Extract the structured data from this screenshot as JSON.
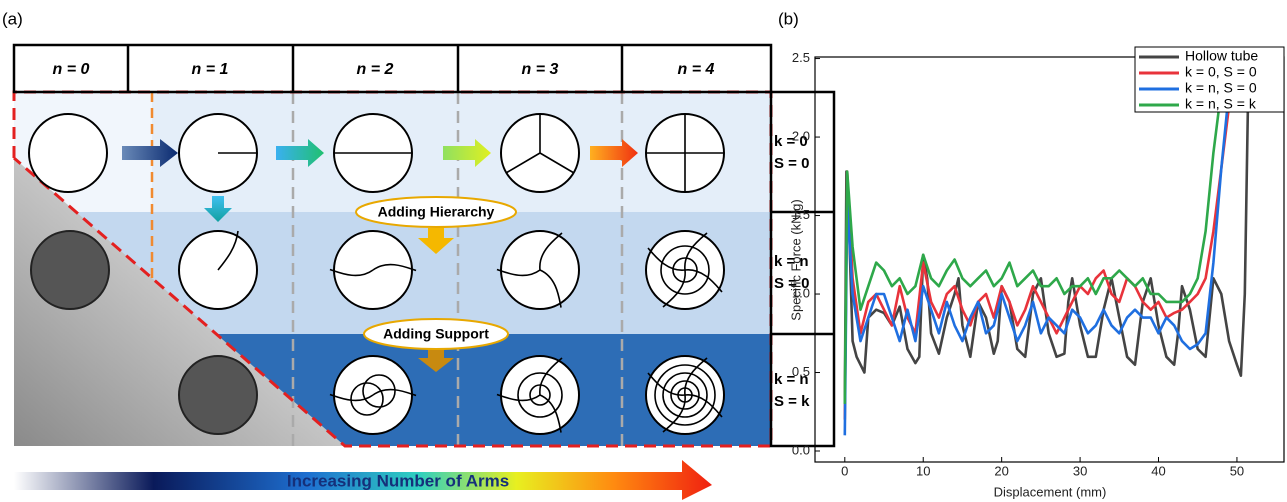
{
  "panel_labels": [
    "(a)",
    "(b)"
  ],
  "diagram": {
    "columns": [
      "n = 0",
      "n = 1",
      "n = 2",
      "n = 3",
      "n = 4"
    ],
    "rows": [
      {
        "k": "k = 0",
        "s": "S = 0"
      },
      {
        "k": "k = n",
        "s": "S = 0"
      },
      {
        "k": "k = n",
        "s": "S = k"
      }
    ],
    "steps": [
      "Adding Hierarchy",
      "Adding Support"
    ],
    "arrow_label": "Increasing Number of Arms"
  },
  "chart_data": {
    "type": "line",
    "xlabel": "Displacement (mm)",
    "ylabel": "Specific Force (kN/g)",
    "xlim": [
      -3.8,
      56
    ],
    "xticks": [
      0,
      10,
      20,
      30,
      40,
      50
    ],
    "ylim": [
      -0.07,
      2.51
    ],
    "yticks": [
      {
        "value": 0,
        "label": "0.0"
      },
      0.5,
      {
        "value": 1,
        "label": "1.0"
      },
      1.5,
      {
        "value": 2,
        "label": "2.0"
      },
      2.5
    ],
    "legend": "upper right",
    "series": [
      {
        "name": "Hollow tube",
        "color": "#444444",
        "x": [
          0,
          0.2,
          0.5,
          1,
          1.5,
          2,
          2.5,
          3,
          4,
          5,
          6,
          7,
          8,
          9,
          9.5,
          10,
          10.5,
          11,
          12,
          13,
          14,
          14.5,
          15,
          16,
          17,
          18,
          19,
          19.5,
          20,
          21,
          22,
          23,
          24,
          25,
          26,
          27,
          28,
          28.5,
          29,
          30,
          31,
          32,
          33,
          34,
          35,
          36,
          37,
          38,
          39,
          40,
          41,
          42,
          42.5,
          43,
          44,
          45,
          46,
          47,
          48,
          49,
          50,
          50.5,
          51,
          51.5
        ],
        "values": [
          0.3,
          1.78,
          1.5,
          0.7,
          0.6,
          0.55,
          0.5,
          0.85,
          0.9,
          0.88,
          0.8,
          0.92,
          0.65,
          0.56,
          0.6,
          1.25,
          1.1,
          0.75,
          0.62,
          0.85,
          1.0,
          1.1,
          0.8,
          0.6,
          0.95,
          0.85,
          0.62,
          0.7,
          1.05,
          0.95,
          0.65,
          0.6,
          1.0,
          1.1,
          0.75,
          0.6,
          0.62,
          0.95,
          1.1,
          0.8,
          0.6,
          0.6,
          0.9,
          1.1,
          0.85,
          0.6,
          0.55,
          0.95,
          1.1,
          0.8,
          0.6,
          0.55,
          0.75,
          1.05,
          0.9,
          0.65,
          0.6,
          1.1,
          1.0,
          0.7,
          0.55,
          0.48,
          1.0,
          2.5
        ]
      },
      {
        "name": "k = 0, S = 0",
        "color": "#e8333b",
        "x": [
          0,
          0.3,
          1,
          2,
          3,
          4,
          5,
          6,
          7,
          8,
          9,
          10,
          11,
          12,
          13,
          14,
          15,
          16,
          17,
          18,
          19,
          20,
          21,
          22,
          23,
          24,
          25,
          26,
          27,
          28,
          29,
          30,
          31,
          32,
          33,
          34,
          35,
          36,
          37,
          38,
          39,
          40,
          41,
          42,
          43,
          44,
          45,
          46,
          47,
          48,
          49,
          50
        ],
        "values": [
          0.2,
          1.78,
          1.1,
          0.75,
          0.95,
          1.0,
          0.9,
          0.8,
          1.05,
          0.85,
          0.75,
          1.2,
          0.95,
          0.85,
          1.0,
          1.05,
          0.9,
          0.8,
          0.95,
          1.0,
          0.85,
          1.05,
          0.95,
          0.8,
          0.9,
          1.05,
          0.95,
          0.85,
          0.75,
          0.85,
          0.95,
          1.05,
          1.0,
          1.1,
          1.15,
          1.0,
          0.95,
          1.1,
          1.05,
          0.95,
          0.9,
          0.95,
          0.85,
          0.88,
          0.9,
          0.95,
          1.0,
          1.1,
          1.4,
          1.8,
          2.2,
          2.5
        ]
      },
      {
        "name": "k = n, S = 0",
        "color": "#1f6fe0",
        "x": [
          0,
          0.3,
          1,
          2,
          3,
          4,
          5,
          6,
          7,
          8,
          9,
          10,
          11,
          12,
          13,
          14,
          15,
          16,
          17,
          18,
          19,
          20,
          21,
          22,
          23,
          24,
          25,
          26,
          27,
          28,
          29,
          30,
          31,
          32,
          33,
          34,
          35,
          36,
          37,
          38,
          39,
          40,
          41,
          42,
          43,
          44,
          45,
          46,
          47,
          48,
          49,
          50
        ],
        "values": [
          0.1,
          1.6,
          1.0,
          0.7,
          0.85,
          1.0,
          1.0,
          0.85,
          0.7,
          0.9,
          0.7,
          1.05,
          0.9,
          0.75,
          0.95,
          0.8,
          0.7,
          0.85,
          0.95,
          0.75,
          0.8,
          1.0,
          0.85,
          0.7,
          0.8,
          0.95,
          0.75,
          0.85,
          0.8,
          0.75,
          0.9,
          0.85,
          0.75,
          0.8,
          0.9,
          0.8,
          0.75,
          0.85,
          0.9,
          0.85,
          0.85,
          0.75,
          0.85,
          0.8,
          0.7,
          0.65,
          0.68,
          0.75,
          1.2,
          1.8,
          2.3,
          2.5
        ]
      },
      {
        "name": "k = n, S = k",
        "color": "#2ea84a",
        "x": [
          0,
          0.3,
          1,
          2,
          3,
          4,
          5,
          6,
          7,
          8,
          9,
          10,
          11,
          12,
          13,
          14,
          15,
          16,
          17,
          18,
          19,
          20,
          21,
          22,
          23,
          24,
          25,
          26,
          27,
          28,
          29,
          30,
          31,
          32,
          33,
          34,
          35,
          36,
          37,
          38,
          39,
          40,
          41,
          42,
          43,
          44,
          45,
          46,
          47,
          48,
          49,
          50
        ],
        "values": [
          0.3,
          1.78,
          1.3,
          0.9,
          1.05,
          1.2,
          1.15,
          1.05,
          1.1,
          1.0,
          1.05,
          1.25,
          1.1,
          1.05,
          1.15,
          1.22,
          1.1,
          1.05,
          1.1,
          1.15,
          1.05,
          1.1,
          1.2,
          1.05,
          1.1,
          1.15,
          1.05,
          1.05,
          1.1,
          1.0,
          1.05,
          1.05,
          1.1,
          1.0,
          1.1,
          1.1,
          1.15,
          1.1,
          1.05,
          1.1,
          1.0,
          1.0,
          0.95,
          0.95,
          0.95,
          1.0,
          1.1,
          1.4,
          1.9,
          2.3,
          2.5,
          2.5
        ]
      }
    ]
  }
}
